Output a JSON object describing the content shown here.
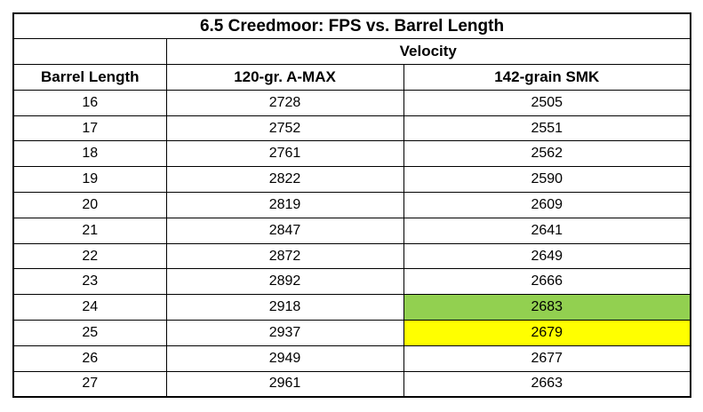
{
  "page": {
    "background": "#ffffff",
    "border_color": "#000000"
  },
  "table": {
    "title": "6.5 Creedmoor: FPS vs. Barrel Length",
    "velocity_group_header": "Velocity",
    "columns": [
      "Barrel Length",
      "120-gr. A-MAX",
      "142-grain SMK"
    ],
    "rows": [
      {
        "barrel_length": "16",
        "amax": "2728",
        "smk": "2505"
      },
      {
        "barrel_length": "17",
        "amax": "2752",
        "smk": "2551"
      },
      {
        "barrel_length": "18",
        "amax": "2761",
        "smk": "2562"
      },
      {
        "barrel_length": "19",
        "amax": "2822",
        "smk": "2590"
      },
      {
        "barrel_length": "20",
        "amax": "2819",
        "smk": "2609"
      },
      {
        "barrel_length": "21",
        "amax": "2847",
        "smk": "2641"
      },
      {
        "barrel_length": "22",
        "amax": "2872",
        "smk": "2649"
      },
      {
        "barrel_length": "23",
        "amax": "2892",
        "smk": "2666"
      },
      {
        "barrel_length": "24",
        "amax": "2918",
        "smk": "2683"
      },
      {
        "barrel_length": "25",
        "amax": "2937",
        "smk": "2679"
      },
      {
        "barrel_length": "26",
        "amax": "2949",
        "smk": "2677"
      },
      {
        "barrel_length": "27",
        "amax": "2961",
        "smk": "2663"
      }
    ],
    "highlights": {
      "green": {
        "barrel_length": "24",
        "column": "142-grain SMK",
        "value": "2683",
        "color": "#92D050"
      },
      "yellow": {
        "barrel_length": "25",
        "column": "142-grain SMK",
        "value": "2679",
        "color": "#FFFF00"
      }
    }
  },
  "chart_data": {
    "type": "table",
    "title": "6.5 Creedmoor: FPS vs. Barrel Length",
    "group_header": "Velocity",
    "columns": [
      "Barrel Length",
      "120-gr. A-MAX",
      "142-grain SMK"
    ],
    "rows": [
      [
        16,
        2728,
        2505
      ],
      [
        17,
        2752,
        2551
      ],
      [
        18,
        2761,
        2562
      ],
      [
        19,
        2822,
        2590
      ],
      [
        20,
        2819,
        2609
      ],
      [
        21,
        2847,
        2641
      ],
      [
        22,
        2872,
        2649
      ],
      [
        23,
        2892,
        2666
      ],
      [
        24,
        2918,
        2683
      ],
      [
        25,
        2937,
        2679
      ],
      [
        26,
        2949,
        2677
      ],
      [
        27,
        2961,
        2663
      ]
    ],
    "highlighted_cells": [
      {
        "row": 24,
        "column": "142-grain SMK",
        "value": 2683,
        "color": "#92D050"
      },
      {
        "row": 25,
        "column": "142-grain SMK",
        "value": 2679,
        "color": "#FFFF00"
      }
    ]
  }
}
